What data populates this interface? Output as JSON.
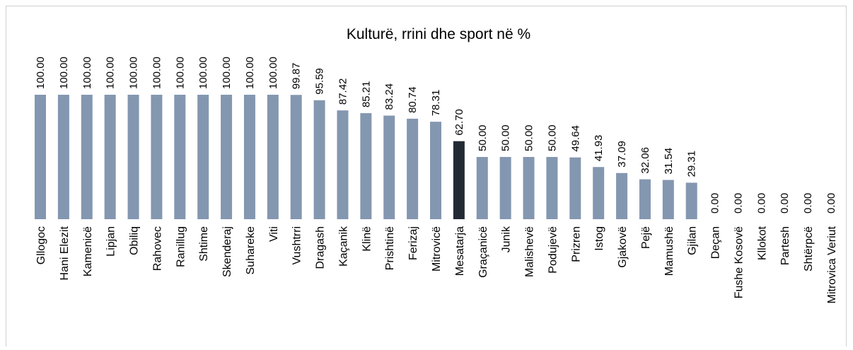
{
  "chart_data": {
    "type": "bar",
    "title": "Kulturë, rrini dhe sport në %",
    "categories": [
      "Gllogoc",
      "Hani Elezit",
      "Kamenicë",
      "Lipjan",
      "Obiliq",
      "Rahovec",
      "Ranillug",
      "Shtime",
      "Skenderaj",
      "Suhareke",
      "Viti",
      "Vushtrri",
      "Dragash",
      "Kaçanik",
      "Klinë",
      "Prishtinë",
      "Ferizaj",
      "Mitrovicë",
      "Mesatarja",
      "Graçanicë",
      "Junik",
      "Malishevë",
      "Podujevë",
      "Prizren",
      "Istog",
      "Gjakovë",
      "Pejë",
      "Mamushë",
      "Gjilan",
      "Deçan",
      "Fushe Kosovë",
      "Kllokot",
      "Partesh",
      "Shtërpcë",
      "Mitrovica Veriut"
    ],
    "values": [
      100,
      100,
      100,
      100,
      100,
      100,
      100,
      100,
      100,
      100,
      100,
      99.87,
      95.59,
      87.42,
      85.21,
      83.24,
      80.74,
      78.31,
      62.7,
      50,
      50,
      50,
      50,
      49.64,
      41.93,
      37.09,
      32.06,
      31.54,
      29.31,
      0,
      0,
      0,
      0,
      0,
      0
    ],
    "value_labels": [
      "100.00",
      "100.00",
      "100.00",
      "100.00",
      "100.00",
      "100.00",
      "100.00",
      "100.00",
      "100.00",
      "100.00",
      "100.00",
      "99.87",
      "95.59",
      "87.42",
      "85.21",
      "83.24",
      "80.74",
      "78.31",
      "62.70",
      "50.00",
      "50.00",
      "50.00",
      "50.00",
      "49.64",
      "41.93",
      "37.09",
      "32.06",
      "31.54",
      "29.31",
      "0.00",
      "0.00",
      "0.00",
      "0.00",
      "0.00",
      "0.00"
    ],
    "colors": [
      "#8497b0",
      "#8497b0",
      "#8497b0",
      "#8497b0",
      "#8497b0",
      "#8497b0",
      "#8497b0",
      "#8497b0",
      "#8497b0",
      "#8497b0",
      "#8497b0",
      "#8497b0",
      "#8497b0",
      "#8497b0",
      "#8497b0",
      "#8497b0",
      "#8497b0",
      "#8497b0",
      "#222b35",
      "#8497b0",
      "#8497b0",
      "#8497b0",
      "#8497b0",
      "#8497b0",
      "#8497b0",
      "#8497b0",
      "#8497b0",
      "#8497b0",
      "#8497b0",
      "#8497b0",
      "#8497b0",
      "#8497b0",
      "#8497b0",
      "#8497b0",
      "#8497b0"
    ],
    "ylim": [
      0,
      100
    ]
  }
}
